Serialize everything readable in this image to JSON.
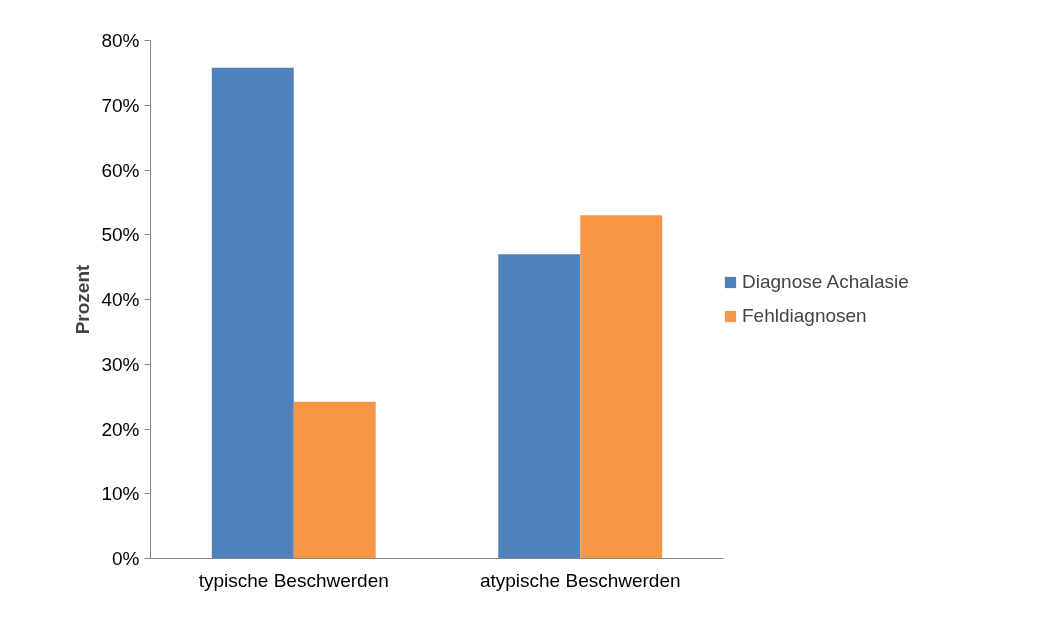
{
  "chart_data": {
    "type": "bar",
    "ylabel": "Prozent",
    "categories": [
      "typische Beschwerden",
      "atypische Beschwerden"
    ],
    "series": [
      {
        "name": "Diagnose Achalasie",
        "color": "#4f81bd",
        "values": [
          75.8,
          47
        ]
      },
      {
        "name": "Fehldiagnosen",
        "color": "#f79646",
        "values": [
          24.2,
          53
        ]
      }
    ],
    "ylim": [
      0,
      80
    ],
    "yticks": [
      {
        "value": 0,
        "label": "0%"
      },
      {
        "value": 10,
        "label": "10%"
      },
      {
        "value": 20,
        "label": "20%"
      },
      {
        "value": 30,
        "label": "30%"
      },
      {
        "value": 40,
        "label": "40%"
      },
      {
        "value": 50,
        "label": "50%"
      },
      {
        "value": 60,
        "label": "60%"
      },
      {
        "value": 70,
        "label": "70%"
      },
      {
        "value": 80,
        "label": "80%"
      }
    ],
    "grid": false,
    "legend": "right"
  }
}
